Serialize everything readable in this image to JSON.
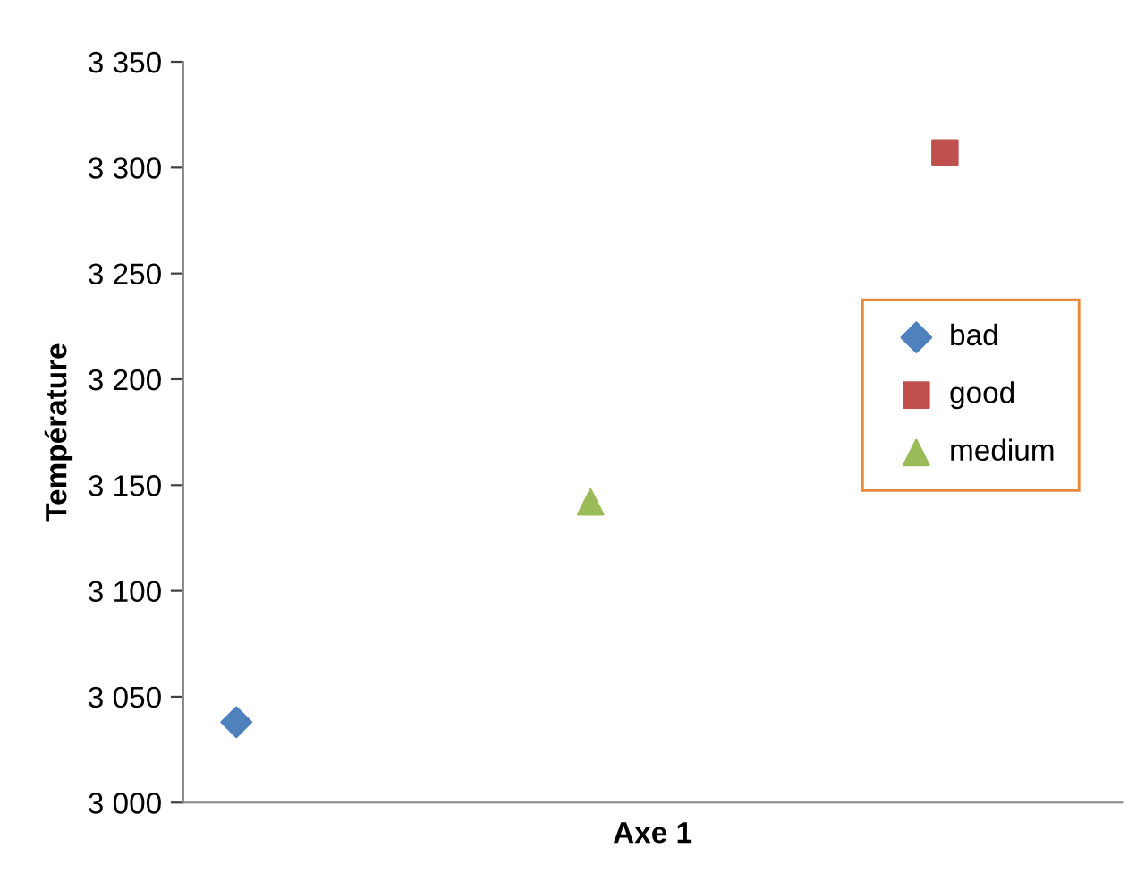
{
  "chart_data": {
    "type": "scatter",
    "xlabel": "Axe 1",
    "ylabel": "Température",
    "categories": [
      null,
      null,
      null
    ],
    "ylim": [
      3000,
      3350
    ],
    "yticks": [
      {
        "value": 3000,
        "label": "3 000"
      },
      {
        "value": 3050,
        "label": "3 050"
      },
      {
        "value": 3100,
        "label": "3 100"
      },
      {
        "value": 3150,
        "label": "3 150"
      },
      {
        "value": 3200,
        "label": "3 200"
      },
      {
        "value": 3250,
        "label": "3 250"
      },
      {
        "value": 3300,
        "label": "3 300"
      },
      {
        "value": 3350,
        "label": "3 350"
      }
    ],
    "grid": false,
    "legend": "right",
    "series": [
      {
        "name": "bad",
        "color": "#4f81bd",
        "marker": "diamond",
        "values": [
          3038,
          null,
          null
        ]
      },
      {
        "name": "good",
        "color": "#c0504d",
        "marker": "square",
        "values": [
          null,
          null,
          3307
        ]
      },
      {
        "name": "medium",
        "color": "#9bbb59",
        "marker": "triangle",
        "values": [
          null,
          3142,
          null
        ]
      }
    ]
  }
}
